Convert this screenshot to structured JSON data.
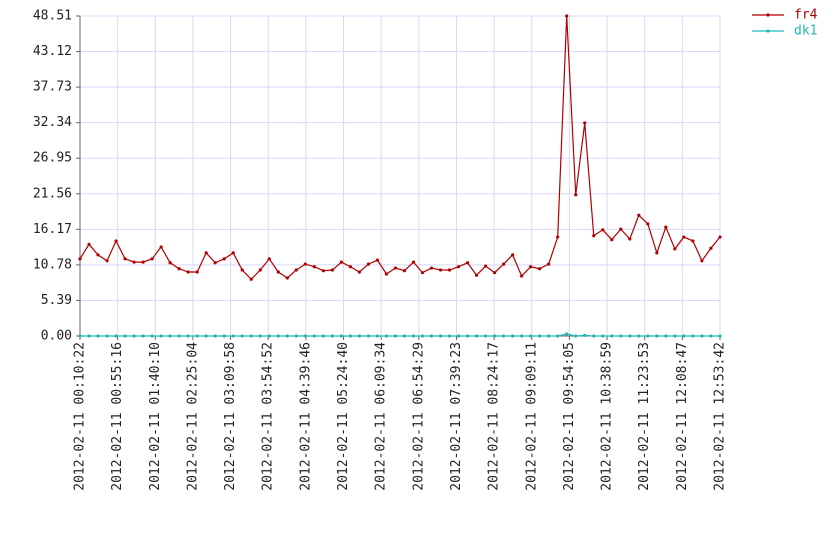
{
  "chart_data": {
    "type": "line",
    "x": [
      "2012-02-11 00:10:22",
      "2012-02-11 00:21:07",
      "2012-02-11 00:31:52",
      "2012-02-11 00:42:37",
      "2012-02-11 00:53:22",
      "2012-02-11 01:04:07",
      "2012-02-11 01:14:52",
      "2012-02-11 01:25:37",
      "2012-02-11 01:36:22",
      "2012-02-11 01:47:07",
      "2012-02-11 01:57:52",
      "2012-02-11 02:08:37",
      "2012-02-11 02:19:22",
      "2012-02-11 02:30:07",
      "2012-02-11 02:40:52",
      "2012-02-11 02:51:37",
      "2012-02-11 03:02:22",
      "2012-02-11 03:13:07",
      "2012-02-11 03:23:52",
      "2012-02-11 03:34:37",
      "2012-02-11 03:45:22",
      "2012-02-11 03:56:07",
      "2012-02-11 04:06:52",
      "2012-02-11 04:17:37",
      "2012-02-11 04:28:22",
      "2012-02-11 04:39:07",
      "2012-02-11 04:49:52",
      "2012-02-11 05:00:37",
      "2012-02-11 05:11:22",
      "2012-02-11 05:22:07",
      "2012-02-11 05:32:52",
      "2012-02-11 05:43:37",
      "2012-02-11 05:54:22",
      "2012-02-11 06:05:07",
      "2012-02-11 06:15:52",
      "2012-02-11 06:26:37",
      "2012-02-11 06:37:22",
      "2012-02-11 06:48:07",
      "2012-02-11 06:58:52",
      "2012-02-11 07:09:37",
      "2012-02-11 07:20:22",
      "2012-02-11 07:31:07",
      "2012-02-11 07:41:52",
      "2012-02-11 07:52:37",
      "2012-02-11 08:03:22",
      "2012-02-11 08:14:07",
      "2012-02-11 08:24:52",
      "2012-02-11 08:35:37",
      "2012-02-11 08:46:22",
      "2012-02-11 08:57:07",
      "2012-02-11 09:07:52",
      "2012-02-11 09:18:37",
      "2012-02-11 09:29:22",
      "2012-02-11 09:40:07",
      "2012-02-11 09:50:52",
      "2012-02-11 10:01:37",
      "2012-02-11 10:12:22",
      "2012-02-11 10:23:07",
      "2012-02-11 10:33:52",
      "2012-02-11 10:44:37",
      "2012-02-11 10:55:22",
      "2012-02-11 11:06:07",
      "2012-02-11 11:16:52",
      "2012-02-11 11:27:37",
      "2012-02-11 11:38:22",
      "2012-02-11 11:49:07",
      "2012-02-11 11:59:52",
      "2012-02-11 12:10:37",
      "2012-02-11 12:21:22",
      "2012-02-11 12:32:07",
      "2012-02-11 12:42:52",
      "2012-02-11 12:53:42"
    ],
    "series": [
      {
        "name": "fr4",
        "color": "#b00000",
        "values": [
          11.7,
          13.9,
          12.3,
          11.4,
          14.4,
          11.7,
          11.2,
          11.2,
          11.7,
          13.5,
          11.1,
          10.2,
          9.7,
          9.7,
          12.6,
          11.1,
          11.7,
          12.6,
          10.0,
          8.6,
          10.0,
          11.7,
          9.7,
          8.8,
          10.0,
          10.9,
          10.5,
          9.9,
          10.0,
          11.2,
          10.5,
          9.7,
          10.9,
          11.5,
          9.4,
          10.3,
          9.9,
          11.2,
          9.6,
          10.3,
          10.0,
          10.0,
          10.5,
          11.1,
          9.2,
          10.6,
          9.6,
          10.9,
          12.3,
          9.1,
          10.5,
          10.2,
          10.9,
          15.0,
          48.51,
          21.4,
          32.3,
          15.2,
          16.1,
          14.6,
          16.2,
          14.7,
          18.3,
          17.0,
          12.6,
          16.5,
          13.2,
          15.0,
          14.4,
          11.4,
          13.3,
          15.0
        ]
      },
      {
        "name": "dk1",
        "color": "#20b8b8",
        "values": [
          0,
          0,
          0,
          0,
          0,
          0,
          0,
          0,
          0,
          0,
          0,
          0,
          0,
          0,
          0,
          0,
          0,
          0,
          0,
          0,
          0,
          0,
          0,
          0,
          0,
          0,
          0,
          0,
          0,
          0,
          0,
          0,
          0,
          0,
          0,
          0,
          0,
          0,
          0,
          0,
          0,
          0,
          0,
          0,
          0,
          0,
          0,
          0,
          0,
          0,
          0,
          0,
          0,
          0,
          0.3,
          0,
          0.1,
          0,
          0,
          0,
          0,
          0,
          0,
          0,
          0,
          0,
          0,
          0,
          0,
          0,
          0,
          0
        ]
      }
    ],
    "xlim": [
      "2012-02-11 00:10:22",
      "2012-02-11 12:53:42"
    ],
    "xticks": [
      "2012-02-11 00:10:22",
      "2012-02-11 00:55:16",
      "2012-02-11 01:40:10",
      "2012-02-11 02:25:04",
      "2012-02-11 03:09:58",
      "2012-02-11 03:54:52",
      "2012-02-11 04:39:46",
      "2012-02-11 05:24:40",
      "2012-02-11 06:09:34",
      "2012-02-11 06:54:29",
      "2012-02-11 07:39:23",
      "2012-02-11 08:24:17",
      "2012-02-11 09:09:11",
      "2012-02-11 09:54:05",
      "2012-02-11 10:38:59",
      "2012-02-11 11:23:53",
      "2012-02-11 12:08:47",
      "2012-02-11 12:53:42"
    ],
    "ylim": [
      0,
      48.51
    ],
    "yticks": [
      {
        "value": 0,
        "label": "0.00"
      },
      5.39,
      10.78,
      16.17,
      21.56,
      26.95,
      32.34,
      37.73,
      43.12,
      48.51
    ],
    "grid": true,
    "legend": "upper right"
  }
}
